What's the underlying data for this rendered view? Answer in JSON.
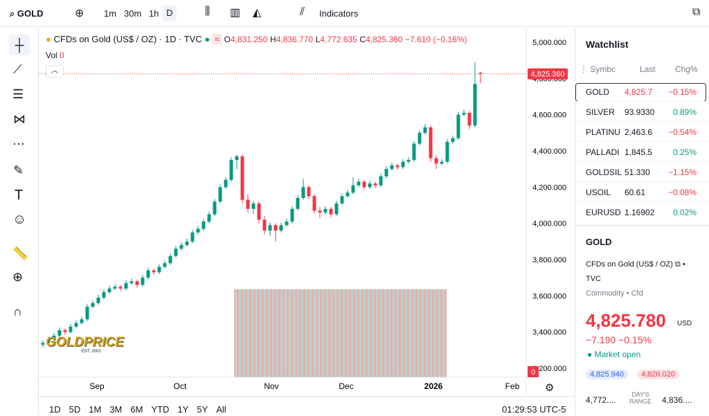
{
  "toolbar": {
    "symbol": "GOLD",
    "intervals": [
      "1m",
      "30m",
      "1h",
      "D"
    ],
    "indicators": "Indicators"
  },
  "legend": {
    "title": "CFDs on Gold (US$ / OZ) · 1D · TVC",
    "o": "O",
    "o_val": "4,831.250",
    "h": "H",
    "h_val": "4,836.770",
    "l": "L",
    "l_val": "4,772.635",
    "c": "C",
    "c_val": "4,825.360",
    "change": "−7.610 (−0.16%)",
    "vol": "Vol",
    "vol_val": "0"
  },
  "logo": {
    "name": "GOLDPRICE",
    "est": "EST. 2002"
  },
  "chart": {
    "type": "candlestick",
    "up_color": "#089981",
    "down_color": "#f23645",
    "ylim": [
      3200,
      5000
    ],
    "yticks": [
      {
        "value": 3200,
        "label": "3,200.000"
      },
      {
        "value": 3400,
        "label": "3,400.000"
      },
      {
        "value": 3600,
        "label": "3,600.000"
      },
      {
        "value": 3800,
        "label": "3,800.000"
      },
      {
        "value": 4000,
        "label": "4,000.000"
      },
      {
        "value": 4200,
        "label": "4,200.000"
      },
      {
        "value": 4400,
        "label": "4,400.000"
      },
      {
        "value": 4600,
        "label": "4,600.000"
      },
      {
        "value": 4800,
        "label": "4,800.000"
      },
      {
        "value": 5000,
        "label": "5,000.000"
      }
    ],
    "last_price": {
      "value": 4825.36,
      "label": "4,825.360"
    },
    "vol_tag": "0",
    "months": [
      "Sep",
      "Oct",
      "Nov",
      "Dec",
      "2026",
      "Feb"
    ],
    "ohlc": [
      [
        3330,
        3355,
        3315,
        3340
      ],
      [
        3340,
        3375,
        3330,
        3360
      ],
      [
        3360,
        3395,
        3350,
        3380
      ],
      [
        3380,
        3425,
        3370,
        3410
      ],
      [
        3410,
        3420,
        3385,
        3400
      ],
      [
        3400,
        3445,
        3390,
        3430
      ],
      [
        3430,
        3465,
        3420,
        3450
      ],
      [
        3450,
        3485,
        3440,
        3470
      ],
      [
        3470,
        3555,
        3460,
        3540
      ],
      [
        3540,
        3575,
        3530,
        3560
      ],
      [
        3560,
        3605,
        3550,
        3590
      ],
      [
        3590,
        3635,
        3580,
        3620
      ],
      [
        3620,
        3655,
        3610,
        3640
      ],
      [
        3640,
        3665,
        3630,
        3650
      ],
      [
        3650,
        3660,
        3625,
        3640
      ],
      [
        3640,
        3685,
        3630,
        3670
      ],
      [
        3670,
        3695,
        3660,
        3680
      ],
      [
        3680,
        3690,
        3645,
        3660
      ],
      [
        3660,
        3715,
        3650,
        3700
      ],
      [
        3700,
        3755,
        3690,
        3740
      ],
      [
        3740,
        3750,
        3715,
        3730
      ],
      [
        3730,
        3775,
        3720,
        3760
      ],
      [
        3760,
        3795,
        3750,
        3780
      ],
      [
        3780,
        3835,
        3770,
        3820
      ],
      [
        3820,
        3875,
        3810,
        3860
      ],
      [
        3860,
        3895,
        3850,
        3880
      ],
      [
        3880,
        3915,
        3870,
        3900
      ],
      [
        3900,
        3965,
        3890,
        3950
      ],
      [
        3950,
        3985,
        3940,
        3970
      ],
      [
        3970,
        4025,
        3960,
        4010
      ],
      [
        4010,
        4065,
        4000,
        4050
      ],
      [
        4050,
        4135,
        4040,
        4120
      ],
      [
        4120,
        4215,
        4110,
        4200
      ],
      [
        4200,
        4255,
        4190,
        4240
      ],
      [
        4240,
        4365,
        4230,
        4350
      ],
      [
        4350,
        4380,
        4300,
        4370
      ],
      [
        4370,
        4380,
        4110,
        4130
      ],
      [
        4130,
        4160,
        4060,
        4080
      ],
      [
        4080,
        4125,
        4050,
        4110
      ],
      [
        4110,
        4120,
        4000,
        4020
      ],
      [
        4020,
        4040,
        3940,
        3960
      ],
      [
        3960,
        4005,
        3930,
        3990
      ],
      [
        3990,
        4000,
        3900,
        3960
      ],
      [
        3960,
        4005,
        3950,
        3990
      ],
      [
        3990,
        4025,
        3980,
        4010
      ],
      [
        4010,
        4095,
        4000,
        4080
      ],
      [
        4080,
        4155,
        4070,
        4140
      ],
      [
        4140,
        4245,
        4130,
        4200
      ],
      [
        4200,
        4210,
        4135,
        4150
      ],
      [
        4150,
        4160,
        4055,
        4070
      ],
      [
        4070,
        4090,
        4030,
        4060
      ],
      [
        4060,
        4095,
        4050,
        4080
      ],
      [
        4080,
        4090,
        4035,
        4050
      ],
      [
        4050,
        4125,
        4040,
        4110
      ],
      [
        4110,
        4165,
        4100,
        4150
      ],
      [
        4150,
        4185,
        4140,
        4170
      ],
      [
        4170,
        4255,
        4160,
        4210
      ],
      [
        4210,
        4245,
        4200,
        4230
      ],
      [
        4230,
        4240,
        4185,
        4200
      ],
      [
        4200,
        4235,
        4190,
        4220
      ],
      [
        4220,
        4230,
        4195,
        4210
      ],
      [
        4210,
        4275,
        4200,
        4260
      ],
      [
        4260,
        4315,
        4250,
        4300
      ],
      [
        4300,
        4335,
        4290,
        4320
      ],
      [
        4320,
        4330,
        4295,
        4310
      ],
      [
        4310,
        4355,
        4300,
        4340
      ],
      [
        4340,
        4365,
        4330,
        4350
      ],
      [
        4350,
        4455,
        4340,
        4440
      ],
      [
        4440,
        4515,
        4430,
        4500
      ],
      [
        4500,
        4550,
        4490,
        4530
      ],
      [
        4530,
        4540,
        4340,
        4360
      ],
      [
        4360,
        4375,
        4300,
        4330
      ],
      [
        4330,
        4355,
        4320,
        4340
      ],
      [
        4340,
        4465,
        4330,
        4450
      ],
      [
        4450,
        4485,
        4440,
        4470
      ],
      [
        4470,
        4615,
        4460,
        4600
      ],
      [
        4600,
        4630,
        4590,
        4610
      ],
      [
        4610,
        4620,
        4520,
        4540
      ],
      [
        4540,
        4890,
        4530,
        4770
      ],
      [
        4831.25,
        4836.77,
        4772.635,
        4825.36
      ]
    ]
  },
  "timeframes": [
    "1D",
    "5D",
    "1M",
    "3M",
    "6M",
    "YTD",
    "1Y",
    "5Y",
    "All"
  ],
  "clock": "01:29:53 UTC-5",
  "watchlist": {
    "title": "Watchlist",
    "headers": [
      "Symbc",
      "Last",
      "Chg%"
    ],
    "rows": [
      [
        "GOLD",
        "4,825.7",
        "−0.15%"
      ],
      [
        "SILVER",
        "93.9330",
        "0.89%"
      ],
      [
        "PLATINU",
        "2,463.6",
        "−0.54%"
      ],
      [
        "PALLADI",
        "1,845.5",
        "0.25%"
      ],
      [
        "GOLDSIL",
        "51.330",
        "−1.15%"
      ],
      [
        "USOIL",
        "60.61",
        "−0.08%"
      ],
      [
        "EURUSD",
        "1.16902",
        "0.02%"
      ]
    ]
  },
  "details": {
    "symbol": "GOLD",
    "name": "CFDs on Gold (US$ / OZ)",
    "exchange": "TVC",
    "category": "Commodity • Cfd",
    "price": "4,825.780",
    "currency": "USD",
    "change": "−7.190",
    "change_pct": "−0.15%",
    "status": "Market open",
    "bid": "4,825.940",
    "ask": "4,826.020",
    "low": "4,772....",
    "range": "DAY'S RANGE",
    "high": "4,836...."
  }
}
